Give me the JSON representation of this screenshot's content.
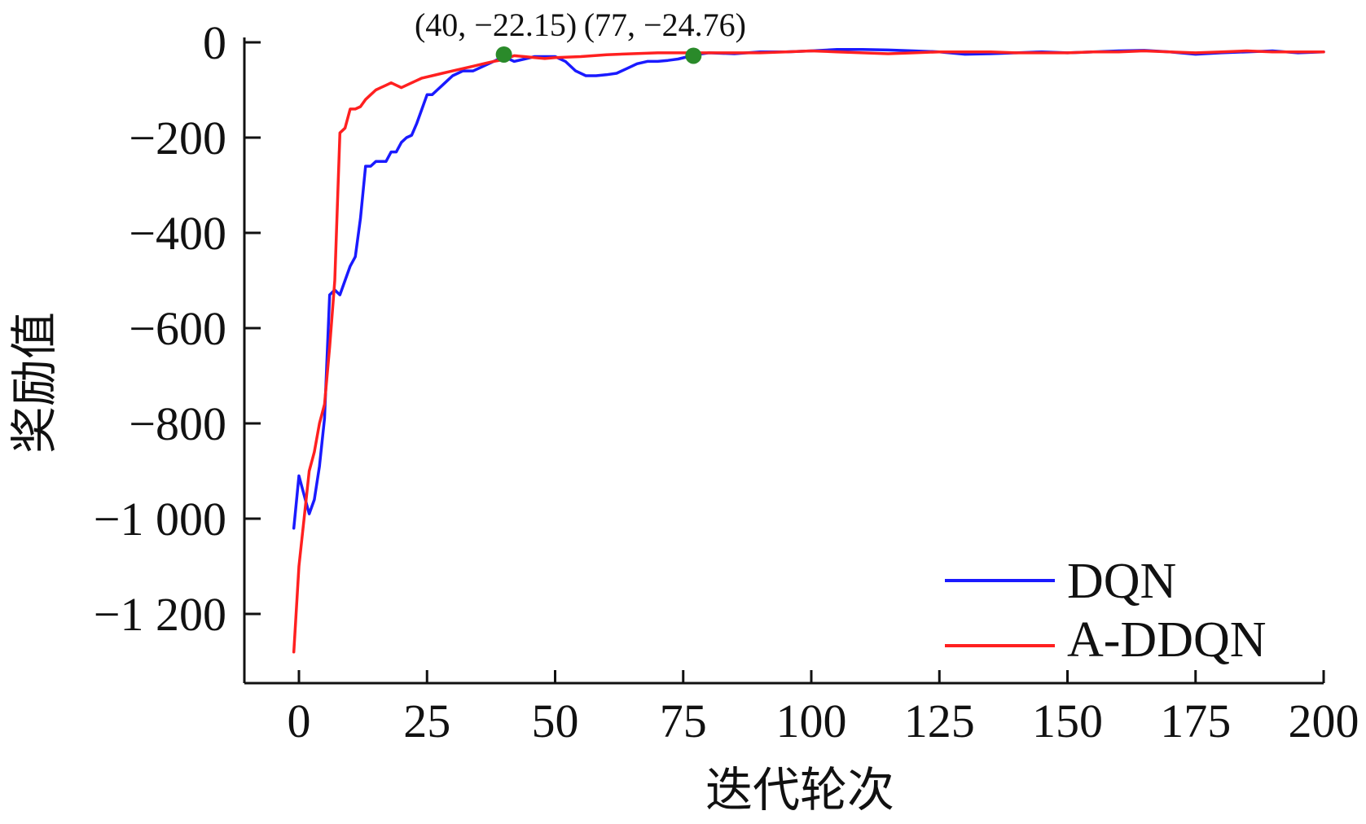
{
  "chart_data": {
    "type": "line",
    "title": "",
    "xlabel": "迭代轮次",
    "ylabel": "奖励值",
    "xlim": [
      -2,
      200
    ],
    "ylim": [
      -1350,
      0
    ],
    "xticks": [
      0,
      25,
      50,
      75,
      100,
      125,
      150,
      175,
      200
    ],
    "xtick_labels": [
      "0",
      "25",
      "50",
      "75",
      "100",
      "125",
      "150",
      "175",
      "200"
    ],
    "yticks": [
      0,
      -200,
      -400,
      -600,
      -800,
      -1000,
      -1200
    ],
    "ytick_labels": [
      "0",
      "−200",
      "−400",
      "−600",
      "−800",
      "−1 000",
      "−1 200"
    ],
    "grid": false,
    "legend_position": "bottom-right",
    "series": [
      {
        "name": "DQN",
        "color": "#1a1aff",
        "x": [
          -1,
          0,
          1,
          2,
          3,
          4,
          5,
          6,
          7,
          8,
          9,
          10,
          11,
          12,
          13,
          14,
          15,
          16,
          17,
          18,
          19,
          20,
          21,
          22,
          23,
          24,
          25,
          26,
          27,
          28,
          29,
          30,
          32,
          34,
          36,
          38,
          40,
          42,
          44,
          46,
          48,
          50,
          52,
          54,
          56,
          58,
          60,
          62,
          64,
          66,
          68,
          70,
          72,
          74,
          76,
          78,
          80,
          85,
          90,
          95,
          100,
          105,
          110,
          115,
          120,
          125,
          130,
          135,
          140,
          145,
          150,
          155,
          160,
          165,
          170,
          175,
          180,
          185,
          190,
          195,
          200
        ],
        "y": [
          -1020,
          -910,
          -950,
          -990,
          -960,
          -890,
          -790,
          -530,
          -520,
          -530,
          -500,
          -470,
          -450,
          -370,
          -260,
          -260,
          -250,
          -250,
          -250,
          -230,
          -230,
          -210,
          -200,
          -195,
          -170,
          -140,
          -110,
          -110,
          -100,
          -90,
          -80,
          -70,
          -60,
          -60,
          -50,
          -40,
          -30,
          -40,
          -35,
          -30,
          -30,
          -30,
          -40,
          -60,
          -70,
          -70,
          -68,
          -65,
          -55,
          -45,
          -40,
          -40,
          -38,
          -35,
          -30,
          -25,
          -22,
          -24,
          -20,
          -20,
          -18,
          -15,
          -15,
          -16,
          -18,
          -20,
          -25,
          -24,
          -22,
          -20,
          -22,
          -20,
          -18,
          -17,
          -20,
          -25,
          -22,
          -20,
          -18,
          -22,
          -20
        ]
      },
      {
        "name": "A-DDQN",
        "color": "#ff2020",
        "x": [
          -1,
          0,
          1,
          2,
          3,
          4,
          5,
          6,
          7,
          8,
          9,
          10,
          11,
          12,
          13,
          14,
          15,
          16,
          17,
          18,
          19,
          20,
          22,
          24,
          26,
          28,
          30,
          32,
          34,
          36,
          38,
          40,
          42,
          44,
          46,
          48,
          50,
          55,
          60,
          65,
          70,
          75,
          80,
          85,
          90,
          95,
          100,
          105,
          110,
          115,
          120,
          125,
          130,
          135,
          140,
          145,
          150,
          155,
          160,
          165,
          170,
          175,
          180,
          185,
          190,
          195,
          200
        ],
        "y": [
          -1280,
          -1100,
          -1000,
          -900,
          -860,
          -800,
          -760,
          -640,
          -500,
          -190,
          -180,
          -140,
          -140,
          -135,
          -120,
          -110,
          -100,
          -95,
          -90,
          -85,
          -90,
          -95,
          -85,
          -75,
          -70,
          -65,
          -60,
          -55,
          -50,
          -45,
          -40,
          -36,
          -28,
          -30,
          -32,
          -34,
          -32,
          -30,
          -26,
          -24,
          -22,
          -22,
          -22,
          -22,
          -22,
          -20,
          -18,
          -20,
          -22,
          -24,
          -22,
          -20,
          -20,
          -20,
          -22,
          -22,
          -22,
          -20,
          -20,
          -18,
          -20,
          -22,
          -20,
          -18,
          -20,
          -20,
          -20
        ]
      }
    ],
    "annotations": [
      {
        "x": 40,
        "y": -22.15,
        "text": "(40, −22.15)",
        "color": "#2a8a2a"
      },
      {
        "x": 77,
        "y": -24.76,
        "text": "(77, −24.76)",
        "color": "#2a8a2a"
      }
    ]
  }
}
